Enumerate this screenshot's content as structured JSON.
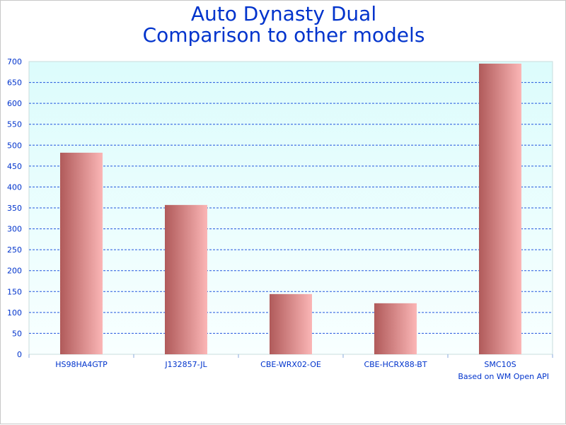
{
  "chart_data": {
    "type": "bar",
    "title": "Auto Dynasty Dual\nComparison to other models",
    "title_lines": [
      "Auto Dynasty Dual",
      "Comparison to other models"
    ],
    "categories": [
      "HS98HA4GTP",
      "J132857-JL",
      "CBE-WRX02-OE",
      "CBE-HCRX88-BT",
      "SMC10S"
    ],
    "values": [
      482,
      357,
      144,
      122,
      695
    ],
    "ylim": [
      0,
      700
    ],
    "yticks": [
      0,
      50,
      100,
      150,
      200,
      250,
      300,
      350,
      400,
      450,
      500,
      550,
      600,
      650,
      700
    ],
    "grid": true,
    "xlabel": "",
    "ylabel": "",
    "annotation": "Based on WM Open API",
    "colors": {
      "title": "#0033cc",
      "axis_text": "#0033cc",
      "grid": "#2255dd",
      "bar_dark": "#b05a5a",
      "bar_light": "#fbb6b6",
      "plot_bg_top": "#dcfcfc",
      "plot_bg_bottom": "#f8ffff"
    }
  }
}
